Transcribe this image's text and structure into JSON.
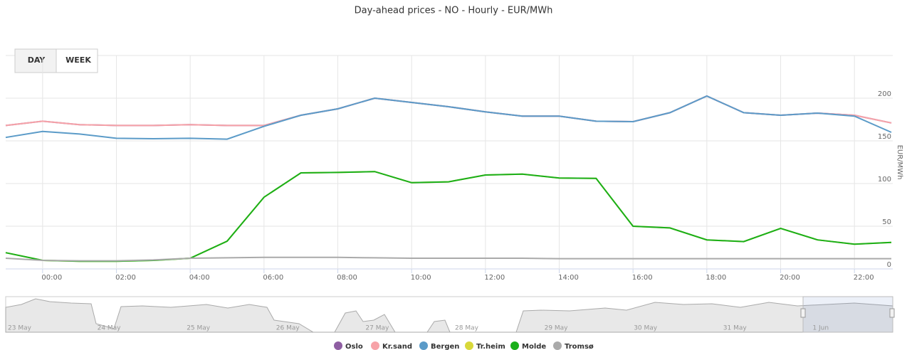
{
  "chart_data": {
    "type": "line",
    "title": "Day-ahead prices - NO - Hourly - EUR/MWh",
    "y_axis_label": "EUR/MWh",
    "x": [
      -1,
      0,
      1,
      2,
      3,
      4,
      5,
      6,
      7,
      8,
      9,
      10,
      11,
      12,
      13,
      14,
      15,
      16,
      17,
      18,
      19,
      20,
      21,
      22,
      23
    ],
    "xlim": [
      -1,
      23
    ],
    "xticks": [
      {
        "value": 0,
        "label": "00:00"
      },
      {
        "value": 2,
        "label": "02:00"
      },
      {
        "value": 4,
        "label": "04:00"
      },
      {
        "value": 6,
        "label": "06:00"
      },
      {
        "value": 8,
        "label": "08:00"
      },
      {
        "value": 10,
        "label": "10:00"
      },
      {
        "value": 12,
        "label": "12:00"
      },
      {
        "value": 14,
        "label": "14:00"
      },
      {
        "value": 16,
        "label": "16:00"
      },
      {
        "value": 18,
        "label": "18:00"
      },
      {
        "value": 20,
        "label": "20:00"
      },
      {
        "value": 22,
        "label": "22:00"
      }
    ],
    "ylim": [
      0,
      250
    ],
    "yticks": [
      0,
      50,
      100,
      150,
      200
    ],
    "grid": true,
    "series": [
      {
        "name": "Oslo",
        "color": "#8e5ea2",
        "values": [
          168,
          173,
          169,
          168,
          168,
          169,
          168,
          168,
          180,
          187.5,
          200,
          195,
          190,
          184,
          179,
          179,
          173,
          172.5,
          183,
          202.5,
          183,
          180,
          182.5,
          180,
          171
        ]
      },
      {
        "name": "Kr.sand",
        "color": "#f7a3a8",
        "values": [
          168,
          173,
          169,
          168,
          168,
          169,
          168,
          168,
          180,
          187.5,
          200,
          195,
          190,
          184,
          179,
          179,
          173,
          172.5,
          183,
          202.5,
          183,
          180,
          182.5,
          180,
          171
        ]
      },
      {
        "name": "Bergen",
        "color": "#5b9bc8",
        "values": [
          154,
          161,
          158,
          153,
          152.5,
          153,
          152,
          167,
          180,
          187.5,
          200,
          195,
          190,
          184,
          179,
          179,
          173,
          172.5,
          183,
          202.5,
          183,
          180,
          182.5,
          179,
          160
        ]
      },
      {
        "name": "Tr.heim",
        "color": "#d8d83a",
        "values": [
          19,
          10,
          9,
          9,
          10,
          12.5,
          32.5,
          84,
          112.5,
          113,
          114,
          101,
          102,
          110,
          111,
          106.5,
          106,
          50,
          48,
          34,
          32,
          47.5,
          34,
          29,
          31
        ]
      },
      {
        "name": "Molde",
        "color": "#1aaf1a",
        "values": [
          19,
          10,
          9,
          9,
          10,
          12.5,
          32.5,
          84,
          112.5,
          113,
          114,
          101,
          102,
          110,
          111,
          106.5,
          106,
          50,
          48,
          34,
          32,
          47.5,
          34,
          29,
          31
        ]
      },
      {
        "name": "Tromsø",
        "color": "#aaaaaa",
        "values": [
          12.5,
          10,
          9.5,
          9.5,
          10.5,
          12.5,
          13,
          13.5,
          13.5,
          13.5,
          13,
          12.5,
          12.5,
          12.5,
          12.5,
          12,
          12,
          12,
          12,
          12,
          12,
          12,
          12,
          12,
          12
        ]
      }
    ]
  },
  "buttons": [
    "DAY",
    "WEEK"
  ],
  "navigator": {
    "labels": [
      "23 May",
      "24 May",
      "25 May",
      "26 May",
      "27 May",
      "28 May",
      "29 May",
      "30 May",
      "31 May",
      "1 Jun"
    ]
  }
}
